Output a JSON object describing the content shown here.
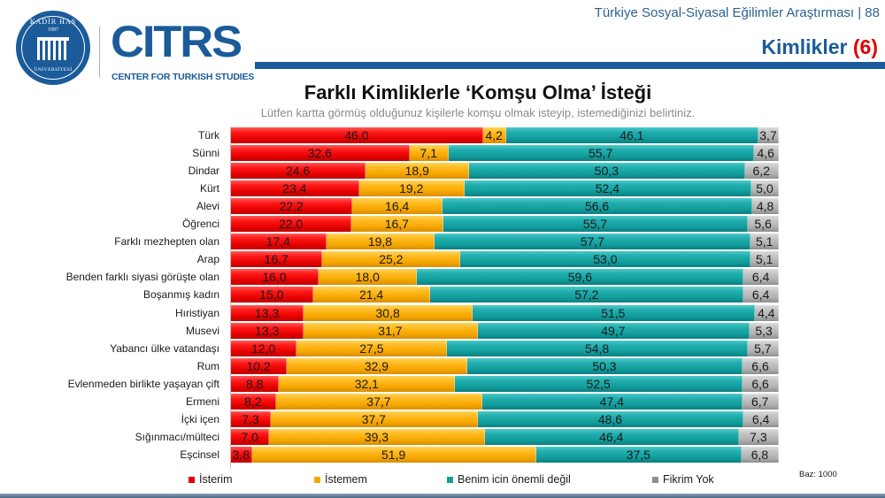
{
  "header": {
    "logo_university": {
      "top_text": "KADİR HAS",
      "year": "1997",
      "bottom_text": "ÜNİVERSİTESİ"
    },
    "logo_center": {
      "acronym": "CITRS",
      "subtitle": "CENTER FOR TURKISH STUDIES"
    },
    "survey_title": "Türkiye Sosyal-Siyasal Eğilimler Araştırması | 88",
    "section_title": "Kimlikler",
    "section_number": "(6)"
  },
  "colors": {
    "brand_blue": "#1b5b9a",
    "accent_red": "#e00000",
    "isterim": "#e60000",
    "istemem": "#f5a600",
    "benim_icin_onemli_degil": "#129c9c",
    "fikrim_yok": "#b0b0b0"
  },
  "chart_data": {
    "type": "bar",
    "orientation": "horizontal",
    "stacked": true,
    "title": "Farklı Kimliklerle ‘Komşu Olma’ İsteği",
    "subtitle": "Lütfen kartta görmüş olduğunuz kişilerle komşu olmak isteyip, istemediğinizi belirtiniz.",
    "xlabel": "",
    "ylabel": "",
    "xlim": [
      0,
      100
    ],
    "grid": false,
    "legend_position": "bottom",
    "base_note": "Baz: 1000",
    "categories": [
      "Türk",
      "Sünni",
      "Dindar",
      "Kürt",
      "Alevi",
      "Öğrenci",
      "Farklı mezhepten olan",
      "Arap",
      "Benden farklı siyasi görüşte olan",
      "Boşanmış kadın",
      "Hıristiyan",
      "Musevi",
      "Yabancı ülke vatandaşı",
      "Rum",
      "Evlenmeden birlikte yaşayan çift",
      "Ermeni",
      "İçki içen",
      "Sığınmacı/mülteci",
      "Eşcinsel"
    ],
    "series": [
      {
        "name": "İsterim",
        "color": "#e60000",
        "values": [
          46.0,
          32.6,
          24.6,
          23.4,
          22.2,
          22.0,
          17.4,
          16.7,
          16.0,
          15.0,
          13.3,
          13.3,
          12.0,
          10.2,
          8.8,
          8.2,
          7.3,
          7.0,
          3.8
        ],
        "labels": [
          "46,0",
          "32,6",
          "24,6",
          "23,4",
          "22,2",
          "22,0",
          "17,4",
          "16,7",
          "16,0",
          "15,0",
          "13,3",
          "13,3",
          "12,0",
          "10,2",
          "8,8",
          "8,2",
          "7,3",
          "7,0",
          "3,8"
        ]
      },
      {
        "name": "İstemem",
        "color": "#f5a600",
        "values": [
          4.2,
          7.1,
          18.9,
          19.2,
          16.4,
          16.7,
          19.8,
          25.2,
          18.0,
          21.4,
          30.8,
          31.7,
          27.5,
          32.9,
          32.1,
          37.7,
          37.7,
          39.3,
          51.9
        ],
        "labels": [
          "4,2",
          "7,1",
          "18,9",
          "19,2",
          "16,4",
          "16,7",
          "19,8",
          "25,2",
          "18,0",
          "21,4",
          "30,8",
          "31,7",
          "27,5",
          "32,9",
          "32,1",
          "37,7",
          "37,7",
          "39,3",
          "51,9"
        ]
      },
      {
        "name": "Benim icin önemli değil",
        "color": "#129c9c",
        "values": [
          46.1,
          55.7,
          50.3,
          52.4,
          56.6,
          55.7,
          57.7,
          53.0,
          59.6,
          57.2,
          51.5,
          49.7,
          54.8,
          50.3,
          52.5,
          47.4,
          48.6,
          46.4,
          37.5
        ],
        "labels": [
          "46,1",
          "55,7",
          "50,3",
          "52,4",
          "56,6",
          "55,7",
          "57,7",
          "53,0",
          "59,6",
          "57,2",
          "51,5",
          "49,7",
          "54,8",
          "50,3",
          "52,5",
          "47,4",
          "48,6",
          "46,4",
          "37,5"
        ]
      },
      {
        "name": "Fikrim Yok",
        "color": "#b0b0b0",
        "values": [
          3.7,
          4.6,
          6.2,
          5.0,
          4.8,
          5.6,
          5.1,
          5.1,
          6.4,
          6.4,
          4.4,
          5.3,
          5.7,
          6.6,
          6.6,
          6.7,
          6.4,
          7.3,
          6.8
        ],
        "labels": [
          "3,7",
          "4,6",
          "6,2",
          "5,0",
          "4,8",
          "5,6",
          "5,1",
          "5,1",
          "6,4",
          "6,4",
          "4,4",
          "5,3",
          "5,7",
          "6,6",
          "6,6",
          "6,7",
          "6,4",
          "7,3",
          "6,8"
        ]
      }
    ]
  },
  "legend": {
    "items": [
      {
        "label": "İsterim",
        "color": "#e60000"
      },
      {
        "label": "İstemem",
        "color": "#f5a600"
      },
      {
        "label": "Benim icin önemli değil",
        "color": "#129c9c"
      },
      {
        "label": "Fikrim Yok",
        "color": "#8f8f8f"
      }
    ],
    "base": "Baz: 1000"
  }
}
